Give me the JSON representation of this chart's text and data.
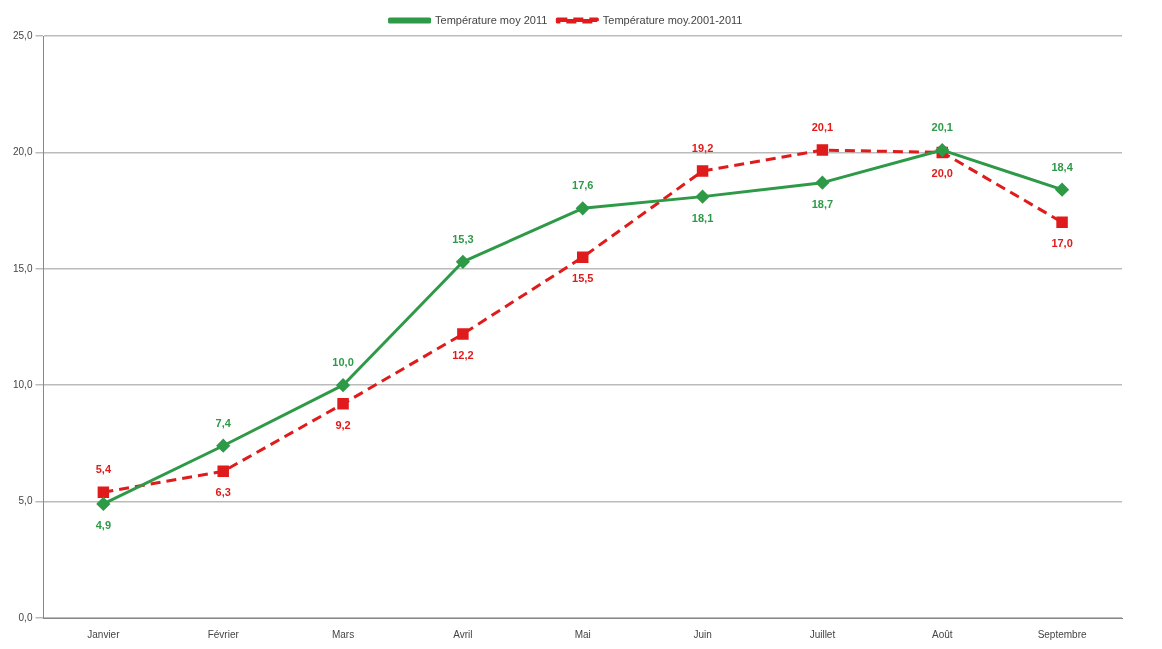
{
  "chart_data": {
    "type": "line",
    "categories": [
      "Janvier",
      "Février",
      "Mars",
      "Avril",
      "Mai",
      "Juin",
      "Juillet",
      "Août",
      "Septembre"
    ],
    "series": [
      {
        "name": "Température moy 2011",
        "color": "#2e9a48",
        "marker": "diamond",
        "line_style": "solid",
        "values": [
          4.9,
          7.4,
          10.0,
          15.3,
          17.6,
          18.1,
          18.7,
          20.1,
          18.4
        ],
        "value_labels": [
          "4,9",
          "7,4",
          "10,0",
          "15,3",
          "17,6",
          "18,1",
          "18,7",
          "20,1",
          "18,4"
        ]
      },
      {
        "name": "Température moy.2001-2011",
        "color": "#e01b1b",
        "marker": "square",
        "line_style": "dashed",
        "values": [
          5.4,
          6.3,
          9.2,
          12.2,
          15.5,
          19.2,
          20.1,
          20.0,
          17.0
        ],
        "value_labels": [
          "5,4",
          "6,3",
          "9,2",
          "12,2",
          "15,5",
          "19,2",
          "20,1",
          "20,0",
          "17,0"
        ]
      }
    ],
    "ylim": [
      0,
      25
    ],
    "yticks": [
      {
        "value": 0,
        "label": "0,0"
      },
      {
        "value": 5,
        "label": "5,0"
      },
      {
        "value": 10,
        "label": "10,0"
      },
      {
        "value": 15,
        "label": "15,0"
      },
      {
        "value": 20,
        "label": "20,0"
      },
      {
        "value": 25,
        "label": "25,0"
      }
    ],
    "grid": "y",
    "legend": "top"
  }
}
